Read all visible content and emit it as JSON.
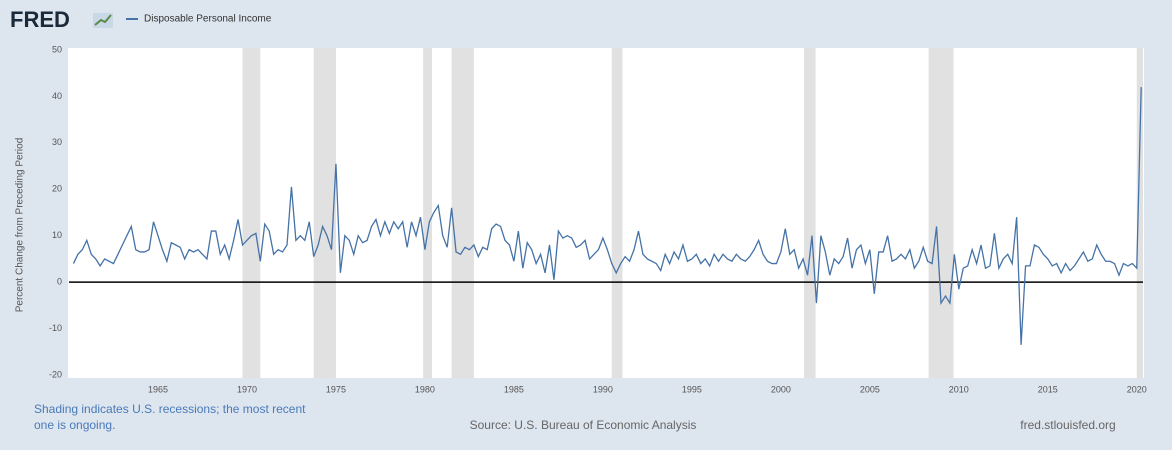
{
  "chart_data": {
    "type": "line",
    "brand": "FRED",
    "ylabel": "Percent Change from Preceding Period",
    "note": "Shading indicates U.S. recessions; the most recent one is ongoing.",
    "source": "Source: U.S. Bureau of Economic Analysis",
    "site": "fred.stlouisfed.org",
    "xlim": [
      1960,
      2020.35
    ],
    "xticks": [
      1965,
      1970,
      1975,
      1980,
      1985,
      1990,
      1995,
      2000,
      2005,
      2010,
      2015,
      2020
    ],
    "ylim": [
      -20,
      50
    ],
    "yticks": [
      -20,
      -10,
      0,
      10,
      20,
      30,
      40,
      50
    ],
    "grid": false,
    "recessions": [
      [
        1969.75,
        1970.75
      ],
      [
        1973.75,
        1975.0
      ],
      [
        1979.9,
        1980.4
      ],
      [
        1981.5,
        1982.75
      ],
      [
        1990.5,
        1991.1
      ],
      [
        2001.3,
        2001.95
      ],
      [
        2008.3,
        2009.7
      ],
      [
        2020.0,
        2020.35
      ]
    ],
    "recession_color": "#e1e1e1",
    "x": [
      1960.25,
      1960.5,
      1960.75,
      1961,
      1961.25,
      1961.5,
      1961.75,
      1962,
      1962.25,
      1962.5,
      1962.75,
      1963,
      1963.25,
      1963.5,
      1963.75,
      1964,
      1964.25,
      1964.5,
      1964.75,
      1965,
      1965.25,
      1965.5,
      1965.75,
      1966,
      1966.25,
      1966.5,
      1966.75,
      1967,
      1967.25,
      1967.5,
      1967.75,
      1968,
      1968.25,
      1968.5,
      1968.75,
      1969,
      1969.25,
      1969.5,
      1969.75,
      1970,
      1970.25,
      1970.5,
      1970.75,
      1971,
      1971.25,
      1971.5,
      1971.75,
      1972,
      1972.25,
      1972.5,
      1972.75,
      1973,
      1973.25,
      1973.5,
      1973.75,
      1974,
      1974.25,
      1974.5,
      1974.75,
      1975,
      1975.25,
      1975.5,
      1975.75,
      1976,
      1976.25,
      1976.5,
      1976.75,
      1977,
      1977.25,
      1977.5,
      1977.75,
      1978,
      1978.25,
      1978.5,
      1978.75,
      1979,
      1979.25,
      1979.5,
      1979.75,
      1980,
      1980.25,
      1980.5,
      1980.75,
      1981,
      1981.25,
      1981.5,
      1981.75,
      1982,
      1982.25,
      1982.5,
      1982.75,
      1983,
      1983.25,
      1983.5,
      1983.75,
      1984,
      1984.25,
      1984.5,
      1984.75,
      1985,
      1985.25,
      1985.5,
      1985.75,
      1986,
      1986.25,
      1986.5,
      1986.75,
      1987,
      1987.25,
      1987.5,
      1987.75,
      1988,
      1988.25,
      1988.5,
      1988.75,
      1989,
      1989.25,
      1989.5,
      1989.75,
      1990,
      1990.25,
      1990.5,
      1990.75,
      1991,
      1991.25,
      1991.5,
      1991.75,
      1992,
      1992.25,
      1992.5,
      1992.75,
      1993,
      1993.25,
      1993.5,
      1993.75,
      1994,
      1994.25,
      1994.5,
      1994.75,
      1995,
      1995.25,
      1995.5,
      1995.75,
      1996,
      1996.25,
      1996.5,
      1996.75,
      1997,
      1997.25,
      1997.5,
      1997.75,
      1998,
      1998.25,
      1998.5,
      1998.75,
      1999,
      1999.25,
      1999.5,
      1999.75,
      2000,
      2000.25,
      2000.5,
      2000.75,
      2001,
      2001.25,
      2001.5,
      2001.75,
      2002,
      2002.25,
      2002.5,
      2002.75,
      2003,
      2003.25,
      2003.5,
      2003.75,
      2004,
      2004.25,
      2004.5,
      2004.75,
      2005,
      2005.25,
      2005.5,
      2005.75,
      2006,
      2006.25,
      2006.5,
      2006.75,
      2007,
      2007.25,
      2007.5,
      2007.75,
      2008,
      2008.25,
      2008.5,
      2008.75,
      2009,
      2009.25,
      2009.5,
      2009.75,
      2010,
      2010.25,
      2010.5,
      2010.75,
      2011,
      2011.25,
      2011.5,
      2011.75,
      2012,
      2012.25,
      2012.5,
      2012.75,
      2013,
      2013.25,
      2013.5,
      2013.75,
      2014,
      2014.25,
      2014.5,
      2014.75,
      2015,
      2015.25,
      2015.5,
      2015.75,
      2016,
      2016.25,
      2016.5,
      2016.75,
      2017,
      2017.25,
      2017.5,
      2017.75,
      2018,
      2018.25,
      2018.5,
      2018.75,
      2019,
      2019.25,
      2019.5,
      2019.75,
      2020,
      2020.25
    ],
    "series": [
      {
        "name": "Disposable Personal Income",
        "color": "#4572a7",
        "values": [
          4,
          6,
          7,
          9,
          6,
          5,
          3.5,
          5,
          4.5,
          4,
          6,
          8,
          10,
          12,
          7,
          6.5,
          6.5,
          7,
          13,
          10,
          7,
          4.5,
          8.5,
          8,
          7.5,
          5,
          7,
          6.5,
          7,
          6,
          5,
          11,
          11,
          6,
          8,
          5,
          9,
          13.5,
          8,
          9,
          10,
          10.5,
          4.5,
          12.5,
          11,
          6,
          7,
          6.5,
          8,
          20.5,
          9,
          10,
          9,
          13,
          5.5,
          8,
          12,
          10,
          7,
          25.5,
          2,
          10,
          9,
          6,
          10,
          8.5,
          9,
          12,
          13.5,
          10,
          13,
          10.5,
          13,
          11.5,
          13,
          7.5,
          13,
          10,
          14,
          7,
          13,
          15,
          16.5,
          10,
          7.5,
          16,
          6.5,
          6,
          7.5,
          7,
          8,
          5.5,
          7.5,
          7,
          11.5,
          12.5,
          12,
          9,
          8,
          4.5,
          11,
          3,
          8.5,
          7,
          4,
          6,
          2,
          8,
          0.5,
          11,
          9.5,
          10,
          9.5,
          7.5,
          8,
          9,
          5,
          6,
          7,
          9.5,
          7,
          4,
          2,
          4,
          5.5,
          4.5,
          7,
          11,
          6,
          5,
          4.5,
          4,
          2.5,
          6,
          4,
          6.5,
          5,
          8,
          4.5,
          5,
          6,
          4,
          5,
          3.5,
          6,
          4.5,
          6,
          5,
          4.5,
          6,
          5,
          4.5,
          5.5,
          7,
          9,
          6,
          4.5,
          4,
          4,
          6.5,
          11.5,
          6,
          7,
          3,
          5,
          1.5,
          10,
          -4.5,
          10,
          6.5,
          1.5,
          5,
          4,
          5.5,
          9.5,
          3,
          7,
          8,
          4,
          7,
          -2.5,
          6.5,
          6.5,
          10,
          4.5,
          5,
          6,
          5,
          7,
          3,
          4.5,
          7.5,
          4.5,
          4,
          12,
          -4.5,
          -3,
          -4.5,
          6,
          -1.5,
          3,
          3.5,
          7,
          4,
          8,
          3,
          3.5,
          10.5,
          3,
          5,
          6,
          4,
          14,
          -13.5,
          3.5,
          3.5,
          8,
          7.5,
          6,
          5,
          3.5,
          4,
          2,
          4,
          2.5,
          3.5,
          5,
          6.5,
          4.5,
          5,
          8,
          6,
          4.5,
          4.5,
          4,
          1.5,
          4,
          3.5,
          4,
          3,
          42
        ]
      }
    ]
  }
}
